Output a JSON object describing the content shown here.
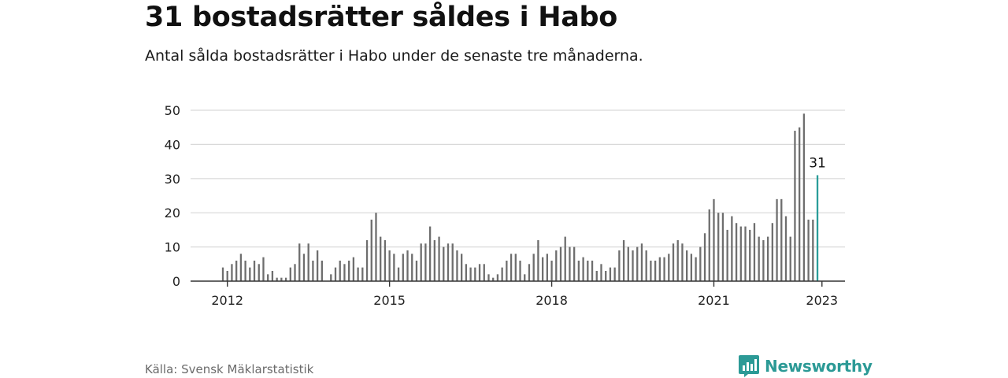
{
  "header": {
    "title": "31 bostadsrätter såldes i Habo",
    "subtitle": "Antal sålda bostadsrätter i Habo under de senaste tre månaderna."
  },
  "footer": {
    "source": "Källa: Svensk Mäklarstatistik",
    "brand": "Newsworthy"
  },
  "colors": {
    "bar": "#6e6e6e",
    "highlight": "#2a9d99",
    "grid": "#d9d9d9",
    "axis": "#333333",
    "brand": "#2c9a96"
  },
  "icons": {
    "brand_logo": "bar-chart-speech-bubble-icon"
  },
  "chart_data": {
    "type": "bar",
    "title": "31 bostadsrätter såldes i Habo",
    "subtitle": "Antal sålda bostadsrätter i Habo under de senaste tre månaderna.",
    "xlabel": "",
    "ylabel": "",
    "ylim": [
      0,
      50
    ],
    "yticks": [
      0,
      10,
      20,
      30,
      40,
      50
    ],
    "xticks": [
      "2012",
      "2015",
      "2018",
      "2021",
      "2023"
    ],
    "grid": true,
    "start_month": "2011-12",
    "end_month": "2023-01",
    "highlight_value_label": "31",
    "values": [
      4,
      3,
      5,
      6,
      8,
      6,
      4,
      6,
      5,
      7,
      2,
      3,
      1,
      1,
      1,
      4,
      5,
      11,
      8,
      11,
      6,
      9,
      6,
      0,
      2,
      4,
      6,
      5,
      6,
      7,
      4,
      4,
      12,
      18,
      20,
      13,
      12,
      9,
      8,
      4,
      8,
      9,
      8,
      6,
      11,
      11,
      16,
      12,
      13,
      10,
      11,
      11,
      9,
      8,
      5,
      4,
      4,
      5,
      5,
      2,
      1,
      2,
      4,
      6,
      8,
      8,
      6,
      2,
      5,
      8,
      12,
      7,
      8,
      6,
      9,
      10,
      13,
      10,
      10,
      6,
      7,
      6,
      6,
      3,
      5,
      3,
      4,
      4,
      9,
      12,
      10,
      9,
      10,
      11,
      9,
      6,
      6,
      7,
      7,
      8,
      11,
      12,
      11,
      9,
      8,
      7,
      10,
      14,
      21,
      24,
      20,
      20,
      15,
      19,
      17,
      16,
      16,
      15,
      17,
      13,
      12,
      13,
      17,
      24,
      24,
      19,
      13,
      44,
      45,
      49,
      18,
      18,
      31
    ]
  }
}
